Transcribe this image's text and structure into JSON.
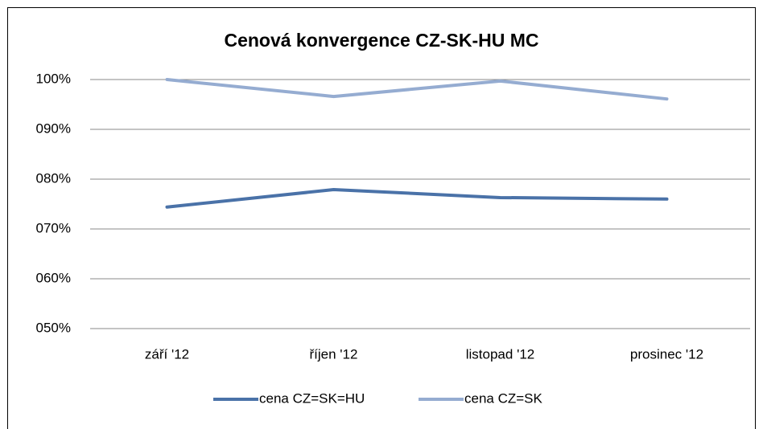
{
  "chart_data": {
    "type": "line",
    "title": "Cenová konvergence CZ-SK-HU MC",
    "categories": [
      "září '12",
      "říjen '12",
      "listopad '12",
      "prosinec '12"
    ],
    "series": [
      {
        "name": "cena CZ=SK=HU",
        "color": "#4a72a8",
        "values": [
          74.4,
          77.9,
          76.3,
          76.0
        ]
      },
      {
        "name": "cena CZ=SK",
        "color": "#95acd1",
        "values": [
          100,
          96.6,
          99.7,
          96.1
        ]
      }
    ],
    "ylim": [
      50,
      100
    ],
    "yticks": [
      {
        "value": 50,
        "label": "050%"
      },
      {
        "value": 60,
        "label": "060%"
      },
      {
        "value": 70,
        "label": "070%"
      },
      {
        "value": 80,
        "label": "080%"
      },
      {
        "value": 90,
        "label": "090%"
      },
      {
        "value": 100,
        "label": "100%"
      }
    ],
    "grid": true,
    "legend": "bottom"
  }
}
